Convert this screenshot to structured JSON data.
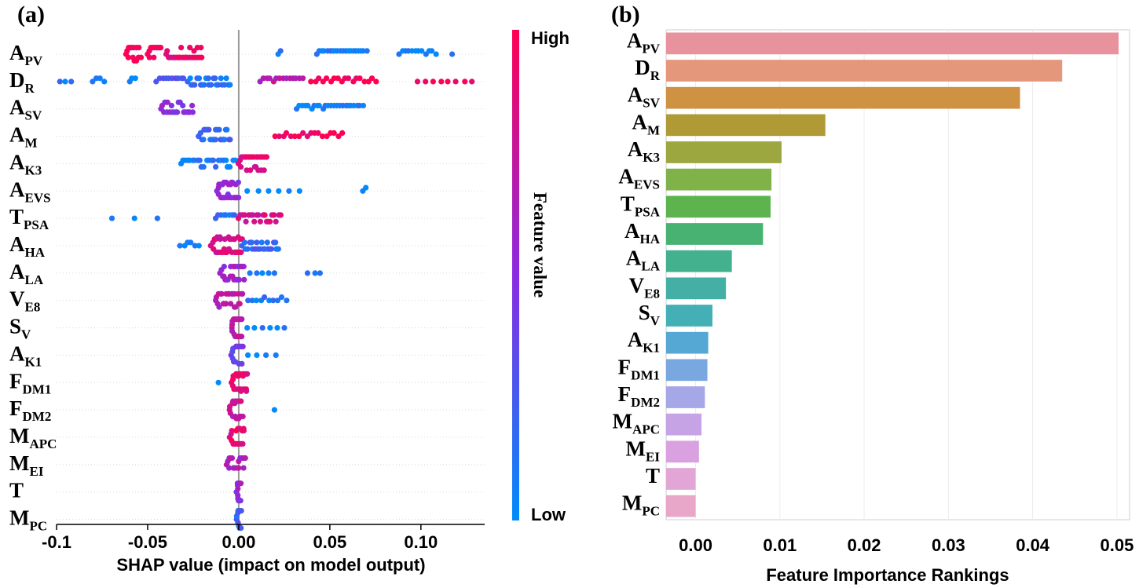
{
  "features": [
    {
      "main": "A",
      "sub": "PV"
    },
    {
      "main": "D",
      "sub": "R"
    },
    {
      "main": "A",
      "sub": "SV"
    },
    {
      "main": "A",
      "sub": "M"
    },
    {
      "main": "A",
      "sub": "K3"
    },
    {
      "main": "A",
      "sub": "EVS"
    },
    {
      "main": "T",
      "sub": "PSA"
    },
    {
      "main": "A",
      "sub": "HA"
    },
    {
      "main": "A",
      "sub": "LA"
    },
    {
      "main": "V",
      "sub": "E8"
    },
    {
      "main": "S",
      "sub": "V"
    },
    {
      "main": "A",
      "sub": "K1"
    },
    {
      "main": "F",
      "sub": "DM1"
    },
    {
      "main": "F",
      "sub": "DM2"
    },
    {
      "main": "M",
      "sub": "APC"
    },
    {
      "main": "M",
      "sub": "EI"
    },
    {
      "main": "T",
      "sub": ""
    },
    {
      "main": "M",
      "sub": "PC"
    }
  ],
  "chart_data": [
    {
      "panel": "(a)",
      "type": "scatter",
      "subtype": "shap-beeswarm",
      "xlabel": "SHAP  value (impact  on model output)",
      "xlim": [
        -0.1,
        0.135
      ],
      "xticks": [
        -0.1,
        -0.05,
        0.0,
        0.05,
        0.1
      ],
      "xtick_labels": [
        "-0.1",
        "-0.05",
        "0.00",
        "0.05",
        "0.10"
      ],
      "colorbar": {
        "title": "Feature   value",
        "high_label": "High",
        "low_label": "Low",
        "high_color": "#ff0052",
        "mid_color": "#8a2be2",
        "low_color": "#008bfb"
      },
      "clusters": [
        [
          {
            "x0": -0.062,
            "x1": -0.054,
            "n": 14,
            "v": 1
          },
          {
            "x0": -0.05,
            "x1": -0.043,
            "n": 12,
            "v": 1
          },
          {
            "x0": -0.04,
            "x1": -0.02,
            "n": 26,
            "v": 0.9
          },
          {
            "x0": 0.022,
            "x1": 0.023,
            "n": 2,
            "v": 0.1
          },
          {
            "x0": 0.043,
            "x1": 0.07,
            "n": 20,
            "v": 0.05
          },
          {
            "x0": 0.088,
            "x1": 0.108,
            "n": 12,
            "v": 0.05
          },
          {
            "x0": 0.117,
            "x1": 0.118,
            "n": 1,
            "v": 0.05
          }
        ],
        [
          {
            "x0": -0.098,
            "x1": -0.092,
            "n": 3,
            "v": 0.05
          },
          {
            "x0": -0.08,
            "x1": -0.074,
            "n": 4,
            "v": 0.05
          },
          {
            "x0": -0.06,
            "x1": -0.057,
            "n": 3,
            "v": 0.05
          },
          {
            "x0": -0.045,
            "x1": -0.03,
            "n": 10,
            "v": 0.3
          },
          {
            "x0": -0.028,
            "x1": -0.005,
            "n": 24,
            "v": 0.1
          },
          {
            "x0": 0.012,
            "x1": 0.035,
            "n": 14,
            "v": 0.7
          },
          {
            "x0": 0.04,
            "x1": 0.075,
            "n": 18,
            "v": 1
          },
          {
            "x0": 0.098,
            "x1": 0.128,
            "n": 8,
            "v": 1
          }
        ],
        [
          {
            "x0": -0.043,
            "x1": -0.025,
            "n": 22,
            "v": 0.5
          },
          {
            "x0": 0.032,
            "x1": 0.068,
            "n": 24,
            "v": 0.05
          }
        ],
        [
          {
            "x0": -0.022,
            "x1": -0.005,
            "n": 24,
            "v": 0.2
          },
          {
            "x0": 0.02,
            "x1": 0.057,
            "n": 18,
            "v": 1
          }
        ],
        [
          {
            "x0": -0.032,
            "x1": -0.002,
            "n": 24,
            "v": 0.08
          },
          {
            "x0": 0.0,
            "x1": 0.015,
            "n": 26,
            "v": 0.85
          }
        ],
        [
          {
            "x0": -0.012,
            "x1": 0.0,
            "n": 26,
            "v": 0.55
          },
          {
            "x0": 0.005,
            "x1": 0.033,
            "n": 6,
            "v": 0.05
          },
          {
            "x0": 0.068,
            "x1": 0.07,
            "n": 2,
            "v": 0.05
          }
        ],
        [
          {
            "x0": -0.07,
            "x1": -0.045,
            "n": 3,
            "v": 0.05
          },
          {
            "x0": -0.013,
            "x1": -0.002,
            "n": 8,
            "v": 0.15
          },
          {
            "x0": 0.0,
            "x1": 0.023,
            "n": 22,
            "v": 0.8
          }
        ],
        [
          {
            "x0": -0.032,
            "x1": -0.022,
            "n": 6,
            "v": 0.05
          },
          {
            "x0": -0.015,
            "x1": 0.002,
            "n": 34,
            "v": 0.85
          },
          {
            "x0": 0.002,
            "x1": 0.022,
            "n": 22,
            "v": 0.2
          }
        ],
        [
          {
            "x0": -0.01,
            "x1": 0.003,
            "n": 24,
            "v": 0.6
          },
          {
            "x0": 0.006,
            "x1": 0.02,
            "n": 5,
            "v": 0.05
          },
          {
            "x0": 0.038,
            "x1": 0.045,
            "n": 3,
            "v": 0.05
          }
        ],
        [
          {
            "x0": -0.013,
            "x1": 0.002,
            "n": 24,
            "v": 0.7
          },
          {
            "x0": 0.005,
            "x1": 0.026,
            "n": 10,
            "v": 0.1
          }
        ],
        [
          {
            "x0": -0.004,
            "x1": 0.002,
            "n": 22,
            "v": 0.7
          },
          {
            "x0": 0.005,
            "x1": 0.025,
            "n": 6,
            "v": 0.05
          }
        ],
        [
          {
            "x0": -0.004,
            "x1": 0.002,
            "n": 18,
            "v": 0.4
          },
          {
            "x0": 0.005,
            "x1": 0.02,
            "n": 4,
            "v": 0.05
          }
        ],
        [
          {
            "x0": -0.012,
            "x1": -0.01,
            "n": 1,
            "v": 0.05
          },
          {
            "x0": -0.004,
            "x1": 0.005,
            "n": 22,
            "v": 0.9
          }
        ],
        [
          {
            "x0": -0.005,
            "x1": 0.002,
            "n": 18,
            "v": 0.75
          },
          {
            "x0": 0.019,
            "x1": 0.02,
            "n": 1,
            "v": 0.05
          }
        ],
        [
          {
            "x0": -0.005,
            "x1": 0.003,
            "n": 18,
            "v": 0.9
          }
        ],
        [
          {
            "x0": -0.007,
            "x1": 0.004,
            "n": 16,
            "v": 0.65
          }
        ],
        [
          {
            "x0": -0.001,
            "x1": 0.001,
            "n": 14,
            "v": 0.55
          }
        ],
        [
          {
            "x0": -0.001,
            "x1": 0.001,
            "n": 12,
            "v": 0.2
          }
        ]
      ]
    },
    {
      "panel": "(b)",
      "type": "bar",
      "orientation": "horizontal",
      "xlabel": "Feature Importance Rankings",
      "xlim": [
        -0.0035,
        0.0515
      ],
      "xticks": [
        0.0,
        0.01,
        0.02,
        0.03,
        0.04,
        0.05
      ],
      "xtick_labels": [
        "0.00",
        "0.01",
        "0.02",
        "0.03",
        "0.04",
        "0.05"
      ],
      "values": [
        0.0502,
        0.0435,
        0.0385,
        0.0154,
        0.0102,
        0.009,
        0.0089,
        0.008,
        0.0043,
        0.0036,
        0.002,
        0.0015,
        0.0014,
        0.0011,
        0.0007,
        0.0004,
        0.0,
        0.0
      ],
      "colors": [
        "#e8929e",
        "#e5977c",
        "#cf9142",
        "#b09a36",
        "#9ca740",
        "#7fb34a",
        "#5db34e",
        "#47b271",
        "#43b08e",
        "#44b0a5",
        "#44b0b5",
        "#55a8d4",
        "#79a8e0",
        "#a5a7e6",
        "#c5a3e4",
        "#daa1e0",
        "#e2a6d6",
        "#e8a6c8"
      ]
    }
  ]
}
